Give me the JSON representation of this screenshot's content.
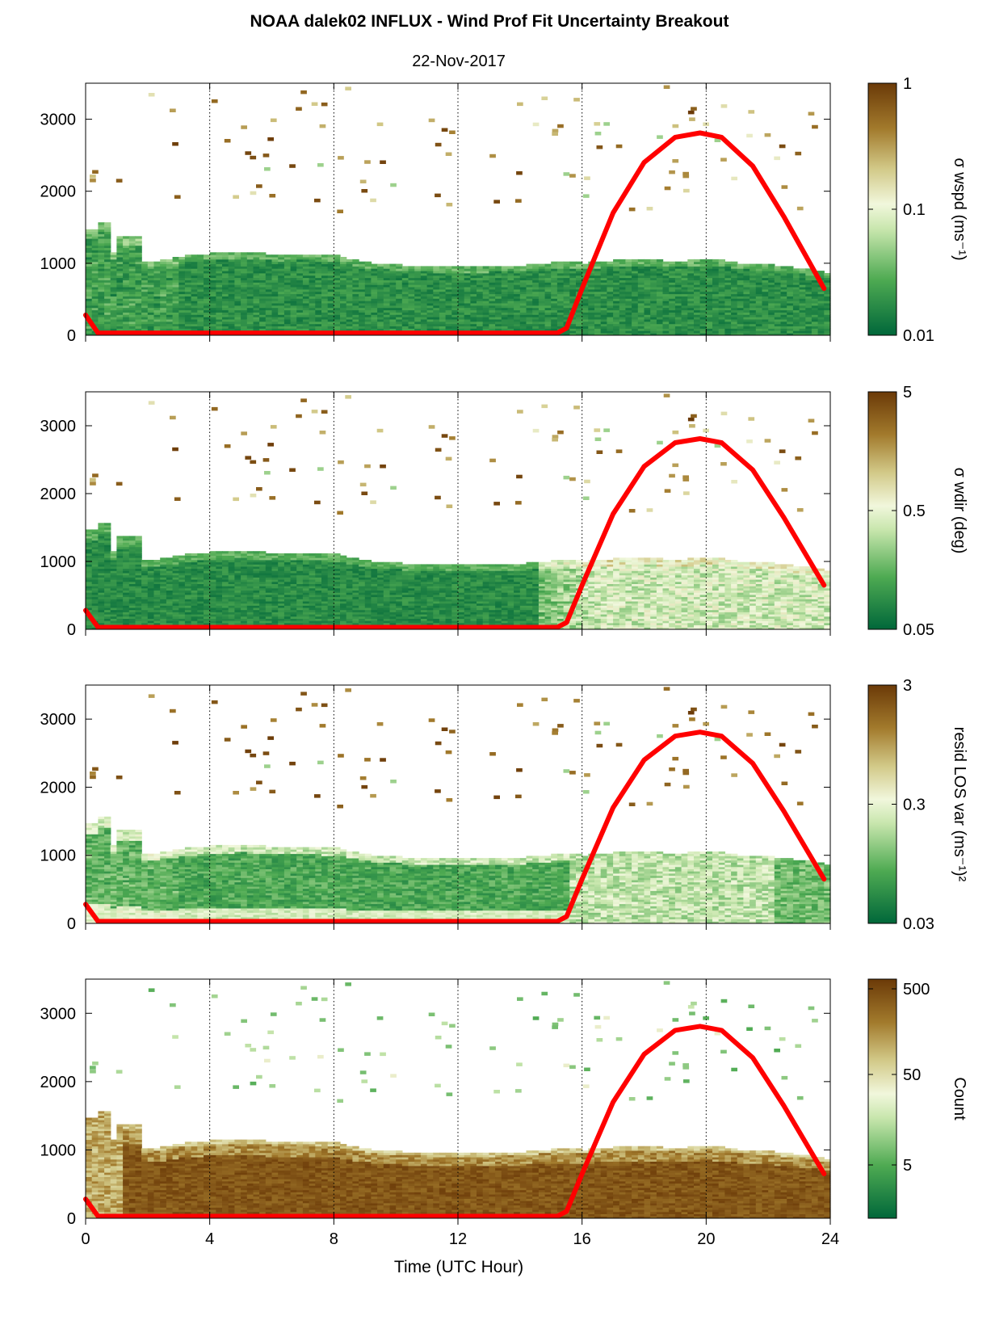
{
  "figure": {
    "title": "NOAA dalek02 INFLUX - Wind Prof Fit Uncertainty Breakout",
    "subtitle": "22-Nov-2017",
    "xlabel": "Time (UTC Hour)"
  },
  "chart_data": [
    {
      "type": "heatmap",
      "title": "NOAA dalek02 INFLUX - Wind Prof Fit Uncertainty Breakout",
      "subtitle": "22-Nov-2017",
      "xlim": [
        0,
        24
      ],
      "ylim": [
        0,
        3500
      ],
      "x_ticks": [
        0,
        4,
        8,
        12,
        16,
        20,
        24
      ],
      "y_ticks": [
        0,
        1000,
        2000,
        3000
      ],
      "vertical_gridlines_dotted": [
        4,
        8,
        12,
        16,
        20
      ],
      "colorbar_label": "σ wspd (ms⁻¹)",
      "colorbar_ticks": [
        "1",
        "0.1",
        "0.01"
      ],
      "colorbar_scale": "log",
      "colorbar_range": [
        0.01,
        1
      ],
      "colors": {
        "low": "#00673a",
        "mid": "#f1f7dc",
        "high": "#6b3a08"
      },
      "sun_elevation_curve": {
        "color": "#ff0000",
        "x": [
          0,
          0.4,
          15.2,
          15.5,
          16,
          17,
          18,
          19,
          19.8,
          20.5,
          21.5,
          22.5,
          23.8
        ],
        "y": [
          280,
          30,
          30,
          100,
          650,
          1700,
          2400,
          2750,
          2810,
          2750,
          2350,
          1650,
          650
        ]
      }
    },
    {
      "type": "heatmap",
      "xlim": [
        0,
        24
      ],
      "ylim": [
        0,
        3500
      ],
      "x_ticks": [
        0,
        4,
        8,
        12,
        16,
        20,
        24
      ],
      "y_ticks": [
        0,
        1000,
        2000,
        3000
      ],
      "vertical_gridlines_dotted": [
        4,
        8,
        12,
        16,
        20
      ],
      "colorbar_label": "σ wdir (deg)",
      "colorbar_ticks": [
        "5",
        "0.5",
        "0.05"
      ],
      "colorbar_scale": "log",
      "colorbar_range": [
        0.05,
        5
      ],
      "colors": {
        "low": "#00673a",
        "mid": "#f1f7dc",
        "high": "#6b3a08"
      }
    },
    {
      "type": "heatmap",
      "xlim": [
        0,
        24
      ],
      "ylim": [
        0,
        3500
      ],
      "x_ticks": [
        0,
        4,
        8,
        12,
        16,
        20,
        24
      ],
      "y_ticks": [
        0,
        1000,
        2000,
        3000
      ],
      "vertical_gridlines_dotted": [
        4,
        8,
        12,
        16,
        20
      ],
      "colorbar_label": "resid LOS var (ms⁻¹)²",
      "colorbar_ticks": [
        "3",
        "0.3",
        "0.03"
      ],
      "colorbar_scale": "log",
      "colorbar_range": [
        0.03,
        3
      ],
      "colors": {
        "low": "#00673a",
        "mid": "#f1f7dc",
        "high": "#6b3a08"
      }
    },
    {
      "type": "heatmap",
      "xlim": [
        0,
        24
      ],
      "ylim": [
        0,
        3500
      ],
      "x_ticks": [
        0,
        4,
        8,
        12,
        16,
        20,
        24
      ],
      "x_tick_labels": [
        "0",
        "4",
        "8",
        "12",
        "16",
        "20",
        "24"
      ],
      "y_ticks": [
        0,
        1000,
        2000,
        3000
      ],
      "vertical_gridlines_dotted": [
        4,
        8,
        12,
        16,
        20
      ],
      "xlabel": "Time (UTC Hour)",
      "colorbar_label": "Count",
      "colorbar_ticks": [
        "500",
        "50",
        "5"
      ],
      "colorbar_scale": "log",
      "colors": {
        "low": "#00673a",
        "mid": "#f1f7dc",
        "high": "#6b3a08"
      }
    }
  ]
}
